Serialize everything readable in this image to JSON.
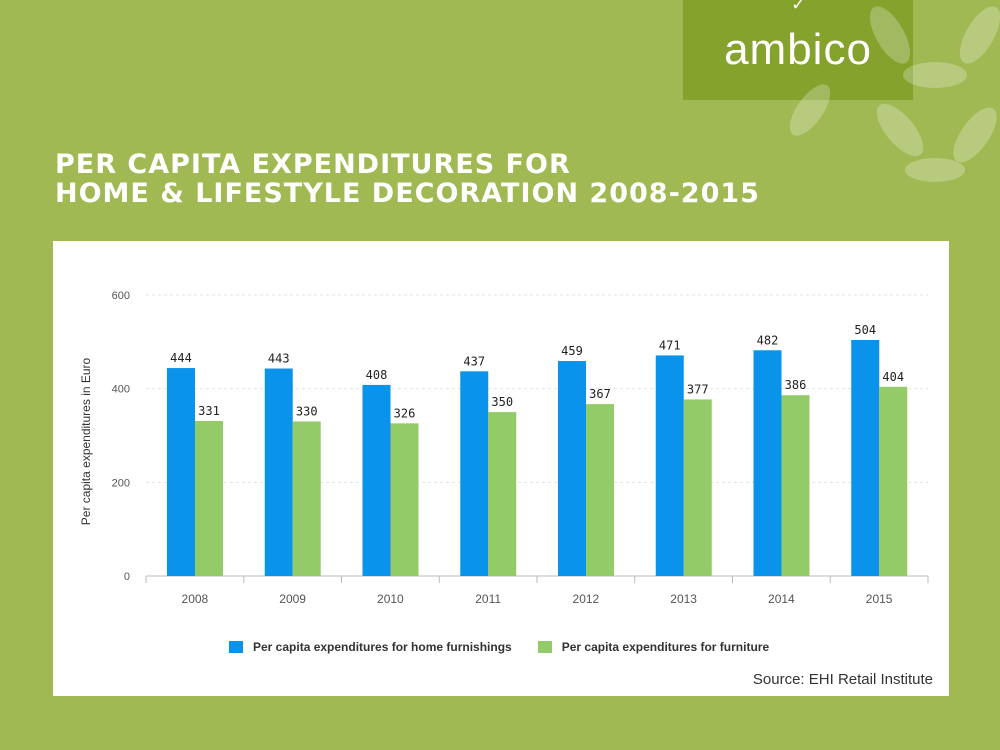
{
  "brand": {
    "name": "ambico",
    "color": "#84a22c"
  },
  "title": {
    "line1": "Per capita expenditures for",
    "line2": "home & lifestyle decoration 2008-2015"
  },
  "chart_data": {
    "type": "bar",
    "categories": [
      "2008",
      "2009",
      "2010",
      "2011",
      "2012",
      "2013",
      "2014",
      "2015"
    ],
    "series": [
      {
        "name": "Per capita expenditures for home furnishings",
        "color": "#0a93eb",
        "values": [
          444,
          443,
          408,
          437,
          459,
          471,
          482,
          504
        ]
      },
      {
        "name": "Per capita expenditures for furniture",
        "color": "#93cb68",
        "values": [
          331,
          330,
          326,
          350,
          367,
          377,
          386,
          404
        ]
      }
    ],
    "ylabel": "Per capita expenditures in Euro",
    "xlabel": "",
    "ylim": [
      0,
      600
    ],
    "yticks": [
      0,
      200,
      400,
      600
    ],
    "grid": true,
    "legend_position": "bottom"
  },
  "source": "Source: EHI Retail Institute"
}
